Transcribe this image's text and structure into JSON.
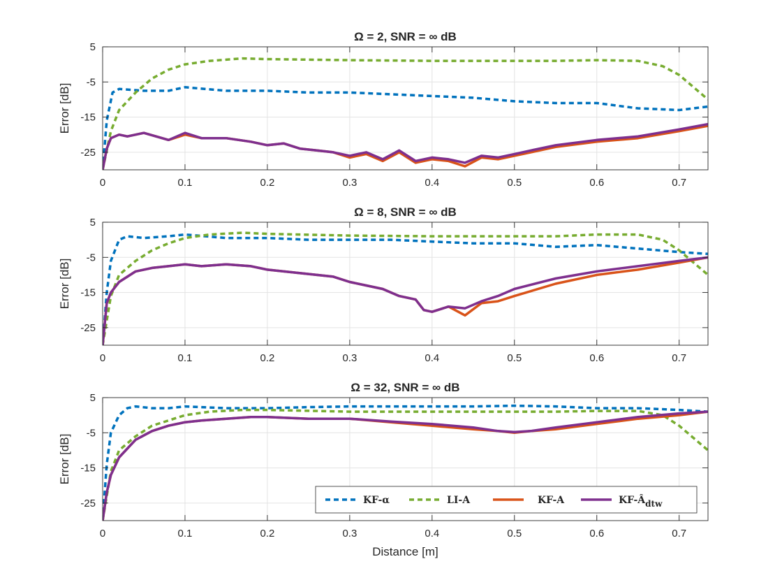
{
  "chart_data": [
    {
      "type": "line",
      "title": "Ω = 2, SNR = ∞ dB",
      "xlabel": "",
      "ylabel": "Error [dB]",
      "xlim": [
        0,
        0.735
      ],
      "ylim": [
        -30,
        5
      ],
      "grid": true,
      "xticks": [
        "0",
        "0.1",
        "0.2",
        "0.3",
        "0.4",
        "0.5",
        "0.6",
        "0.7"
      ],
      "yticks": [
        "5",
        "-5",
        "-15",
        "-25"
      ],
      "series": [
        {
          "name": "KF-α",
          "color": "#0072BD",
          "dash": "dashed",
          "x": [
            0,
            0.005,
            0.012,
            0.02,
            0.05,
            0.08,
            0.1,
            0.15,
            0.2,
            0.25,
            0.3,
            0.35,
            0.4,
            0.45,
            0.5,
            0.55,
            0.6,
            0.65,
            0.7,
            0.735
          ],
          "y": [
            -30,
            -16,
            -8,
            -7,
            -7.5,
            -7.5,
            -6.5,
            -7.5,
            -7.5,
            -8,
            -8,
            -8.5,
            -9,
            -9.5,
            -10.5,
            -11,
            -11,
            -12.5,
            -13,
            -12
          ]
        },
        {
          "name": "LI-A",
          "color": "#77AC30",
          "dash": "dashed",
          "x": [
            0,
            0.01,
            0.02,
            0.04,
            0.06,
            0.08,
            0.1,
            0.13,
            0.17,
            0.2,
            0.3,
            0.4,
            0.5,
            0.55,
            0.6,
            0.65,
            0.68,
            0.7,
            0.72,
            0.735
          ],
          "y": [
            -30,
            -19,
            -13,
            -8,
            -4,
            -1.5,
            0,
            1,
            1.7,
            1.5,
            1.2,
            1,
            1,
            1,
            1.2,
            1,
            -0.5,
            -3,
            -7,
            -10
          ]
        },
        {
          "name": "KF-A",
          "color": "#D95319",
          "dash": "solid",
          "x": [
            0,
            0.005,
            0.01,
            0.02,
            0.03,
            0.05,
            0.08,
            0.1,
            0.12,
            0.15,
            0.18,
            0.2,
            0.22,
            0.24,
            0.26,
            0.28,
            0.3,
            0.32,
            0.34,
            0.36,
            0.38,
            0.4,
            0.42,
            0.44,
            0.46,
            0.48,
            0.5,
            0.52,
            0.55,
            0.6,
            0.65,
            0.7,
            0.735
          ],
          "y": [
            -30,
            -24,
            -21,
            -20,
            -20.5,
            -19.5,
            -21.5,
            -20,
            -21,
            -21,
            -22,
            -23,
            -22.5,
            -24,
            -24.5,
            -25,
            -26.5,
            -25.5,
            -27.5,
            -25,
            -28,
            -27,
            -27.5,
            -29,
            -26.5,
            -27,
            -26,
            -25,
            -23.5,
            -22,
            -21,
            -19,
            -17.5
          ]
        },
        {
          "name": "KF-Âdtw",
          "color": "#7E2F8E",
          "dash": "solid",
          "x": [
            0,
            0.005,
            0.01,
            0.02,
            0.03,
            0.05,
            0.08,
            0.1,
            0.12,
            0.15,
            0.18,
            0.2,
            0.22,
            0.24,
            0.26,
            0.28,
            0.3,
            0.32,
            0.34,
            0.36,
            0.38,
            0.4,
            0.42,
            0.44,
            0.46,
            0.48,
            0.5,
            0.52,
            0.55,
            0.6,
            0.65,
            0.7,
            0.735
          ],
          "y": [
            -30,
            -24,
            -21,
            -20,
            -20.5,
            -19.5,
            -21.5,
            -19.5,
            -21,
            -21,
            -22,
            -23,
            -22.5,
            -24,
            -24.5,
            -25,
            -26,
            -25,
            -27,
            -24.5,
            -27.5,
            -26.5,
            -27,
            -28,
            -26,
            -26.5,
            -25.5,
            -24.5,
            -23,
            -21.5,
            -20.5,
            -18.5,
            -17
          ]
        }
      ]
    },
    {
      "type": "line",
      "title": "Ω = 8, SNR = ∞ dB",
      "xlabel": "",
      "ylabel": "Error [dB]",
      "xlim": [
        0,
        0.735
      ],
      "ylim": [
        -30,
        5
      ],
      "grid": true,
      "xticks": [
        "0",
        "0.1",
        "0.2",
        "0.3",
        "0.4",
        "0.5",
        "0.6",
        "0.7"
      ],
      "yticks": [
        "5",
        "-5",
        "-15",
        "-25"
      ],
      "series": [
        {
          "name": "KF-α",
          "color": "#0072BD",
          "dash": "dashed",
          "x": [
            0,
            0.005,
            0.01,
            0.02,
            0.03,
            0.05,
            0.08,
            0.1,
            0.15,
            0.2,
            0.25,
            0.3,
            0.35,
            0.4,
            0.45,
            0.5,
            0.55,
            0.6,
            0.65,
            0.7,
            0.735
          ],
          "y": [
            -30,
            -15,
            -6,
            0,
            1,
            0.5,
            1,
            1.5,
            0.5,
            0.5,
            0,
            0,
            0,
            -0.5,
            -1,
            -1,
            -2,
            -1.5,
            -2.5,
            -3.5,
            -4
          ]
        },
        {
          "name": "LI-A",
          "color": "#77AC30",
          "dash": "dashed",
          "x": [
            0,
            0.01,
            0.02,
            0.04,
            0.06,
            0.08,
            0.1,
            0.13,
            0.17,
            0.2,
            0.3,
            0.4,
            0.5,
            0.55,
            0.6,
            0.65,
            0.68,
            0.7,
            0.72,
            0.735
          ],
          "y": [
            -30,
            -16,
            -10,
            -6,
            -3,
            -1,
            0.5,
            1.5,
            2,
            1.7,
            1.2,
            1,
            1,
            1,
            1.5,
            1.5,
            0,
            -3,
            -7,
            -10
          ]
        },
        {
          "name": "KF-A",
          "color": "#D95319",
          "dash": "solid",
          "x": [
            0,
            0.005,
            0.01,
            0.02,
            0.04,
            0.06,
            0.08,
            0.1,
            0.12,
            0.15,
            0.18,
            0.2,
            0.22,
            0.24,
            0.26,
            0.28,
            0.3,
            0.32,
            0.34,
            0.36,
            0.38,
            0.39,
            0.4,
            0.42,
            0.44,
            0.46,
            0.48,
            0.5,
            0.55,
            0.6,
            0.65,
            0.7,
            0.735
          ],
          "y": [
            -30,
            -18,
            -15,
            -12,
            -9,
            -8,
            -7.5,
            -7,
            -7.5,
            -7,
            -7.5,
            -8.5,
            -9,
            -9.5,
            -10,
            -10.5,
            -12,
            -13,
            -14,
            -16,
            -17,
            -20,
            -20.5,
            -19,
            -21.5,
            -18,
            -17.5,
            -16,
            -12.5,
            -10,
            -8.5,
            -6.5,
            -5
          ]
        },
        {
          "name": "KF-Âdtw",
          "color": "#7E2F8E",
          "dash": "solid",
          "x": [
            0,
            0.005,
            0.01,
            0.02,
            0.04,
            0.06,
            0.08,
            0.1,
            0.12,
            0.15,
            0.18,
            0.2,
            0.22,
            0.24,
            0.26,
            0.28,
            0.3,
            0.32,
            0.34,
            0.36,
            0.38,
            0.39,
            0.4,
            0.42,
            0.44,
            0.46,
            0.48,
            0.5,
            0.55,
            0.6,
            0.65,
            0.7,
            0.735
          ],
          "y": [
            -30,
            -18,
            -15,
            -12,
            -9,
            -8,
            -7.5,
            -7,
            -7.5,
            -7,
            -7.5,
            -8.5,
            -9,
            -9.5,
            -10,
            -10.5,
            -12,
            -13,
            -14,
            -16,
            -17,
            -20,
            -20.5,
            -19,
            -19.5,
            -17.5,
            -16,
            -14,
            -11,
            -9,
            -7.5,
            -6,
            -5
          ]
        }
      ]
    },
    {
      "type": "line",
      "title": "Ω = 32, SNR = ∞ dB",
      "xlabel": "Distance [m]",
      "ylabel": "Error [dB]",
      "xlim": [
        0,
        0.735
      ],
      "ylim": [
        -30,
        5
      ],
      "grid": true,
      "xticks": [
        "0",
        "0.1",
        "0.2",
        "0.3",
        "0.4",
        "0.5",
        "0.6",
        "0.7"
      ],
      "yticks": [
        "5",
        "-5",
        "-15",
        "-25"
      ],
      "series": [
        {
          "name": "KF-α",
          "color": "#0072BD",
          "dash": "dashed",
          "x": [
            0,
            0.005,
            0.01,
            0.02,
            0.03,
            0.04,
            0.06,
            0.08,
            0.1,
            0.15,
            0.2,
            0.25,
            0.3,
            0.35,
            0.4,
            0.45,
            0.5,
            0.55,
            0.6,
            0.65,
            0.7,
            0.735
          ],
          "y": [
            -30,
            -14,
            -5,
            0,
            2,
            2.5,
            2,
            2,
            2.5,
            2,
            2,
            2.3,
            2.5,
            2.5,
            2.5,
            2.5,
            2.7,
            2.5,
            2,
            2,
            1.5,
            1
          ]
        },
        {
          "name": "LI-A",
          "color": "#77AC30",
          "dash": "dashed",
          "x": [
            0,
            0.01,
            0.02,
            0.04,
            0.06,
            0.08,
            0.1,
            0.13,
            0.17,
            0.2,
            0.3,
            0.4,
            0.5,
            0.55,
            0.6,
            0.65,
            0.68,
            0.7,
            0.72,
            0.735
          ],
          "y": [
            -30,
            -16,
            -10,
            -6,
            -3,
            -1.5,
            0,
            1,
            1.5,
            1.5,
            1,
            1,
            1,
            1,
            1.2,
            1.2,
            0,
            -3,
            -7,
            -10
          ]
        },
        {
          "name": "KF-A",
          "color": "#D95319",
          "dash": "solid",
          "x": [
            0,
            0.005,
            0.01,
            0.02,
            0.04,
            0.06,
            0.08,
            0.1,
            0.12,
            0.15,
            0.18,
            0.2,
            0.25,
            0.3,
            0.35,
            0.4,
            0.45,
            0.48,
            0.5,
            0.52,
            0.55,
            0.6,
            0.65,
            0.7,
            0.735
          ],
          "y": [
            -30,
            -22,
            -17,
            -12,
            -7,
            -4.5,
            -3,
            -2,
            -1.5,
            -1,
            -0.5,
            -0.5,
            -1,
            -1,
            -2,
            -3,
            -4,
            -4.5,
            -5,
            -4.5,
            -4,
            -2.5,
            -1,
            0,
            1
          ]
        },
        {
          "name": "KF-Âdtw",
          "color": "#7E2F8E",
          "dash": "solid",
          "x": [
            0,
            0.005,
            0.01,
            0.02,
            0.04,
            0.06,
            0.08,
            0.1,
            0.12,
            0.15,
            0.18,
            0.2,
            0.25,
            0.3,
            0.35,
            0.4,
            0.45,
            0.48,
            0.5,
            0.52,
            0.55,
            0.6,
            0.65,
            0.7,
            0.735
          ],
          "y": [
            -30,
            -22,
            -17,
            -12,
            -7,
            -4.5,
            -3,
            -2,
            -1.5,
            -1,
            -0.5,
            -0.5,
            -1,
            -1,
            -1.8,
            -2.5,
            -3.5,
            -4.5,
            -4.8,
            -4.5,
            -3.5,
            -2,
            -0.5,
            0.5,
            1
          ]
        }
      ]
    }
  ],
  "legend": {
    "entries": [
      {
        "label": "KF-α",
        "color": "#0072BD",
        "dash": "dashed"
      },
      {
        "label": "LI-A",
        "color": "#77AC30",
        "dash": "dashed"
      },
      {
        "label": "KF-A",
        "color": "#D95319",
        "dash": "solid"
      },
      {
        "label": "KF-Â",
        "sub": "dtw",
        "color": "#7E2F8E",
        "dash": "solid"
      }
    ]
  }
}
